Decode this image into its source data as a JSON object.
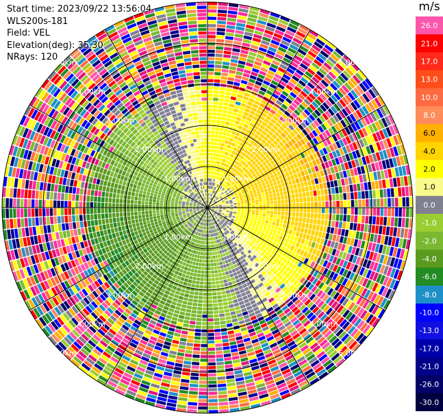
{
  "info": {
    "start_time": "Start time: 2023/09/22 13:56:04",
    "instrument": "WLS200s-181",
    "field": "Field: VEL",
    "elevation": "Elevation(deg): 35.30",
    "nrays": "NRays: 120"
  },
  "rings": {
    "labels": [
      "1.00km",
      "2.00km",
      "3.00km",
      "4.00km",
      "5.00km"
    ]
  },
  "colorbar": {
    "unit": "m/s",
    "levels": [
      {
        "label": "26.0",
        "color": "#ff55aa"
      },
      {
        "label": "21.0",
        "color": "#ff0000"
      },
      {
        "label": "17.0",
        "color": "#ff2a1a"
      },
      {
        "label": "13.0",
        "color": "#ff4d1a"
      },
      {
        "label": "10.0",
        "color": "#ff6a40"
      },
      {
        "label": "8.0",
        "color": "#ff8c5a"
      },
      {
        "label": "6.0",
        "color": "#ffb000"
      },
      {
        "label": "4.0",
        "color": "#ffd400"
      },
      {
        "label": "2.0",
        "color": "#ffff00"
      },
      {
        "label": "1.0",
        "color": "#fafa8c"
      },
      {
        "label": "0.0",
        "color": "#808090"
      },
      {
        "label": "-1.0",
        "color": "#9acd32"
      },
      {
        "label": "-2.0",
        "color": "#7ab830"
      },
      {
        "label": "-4.0",
        "color": "#5a9a1e"
      },
      {
        "label": "-6.0",
        "color": "#228b22"
      },
      {
        "label": "-8.0",
        "color": "#1e90c8"
      },
      {
        "label": "-10.0",
        "color": "#0000ff"
      },
      {
        "label": "-13.0",
        "color": "#1010e0"
      },
      {
        "label": "-17.0",
        "color": "#0000aa"
      },
      {
        "label": "-21.0",
        "color": "#00008b"
      },
      {
        "label": "-26.0",
        "color": "#000066"
      },
      {
        "label": "-30.0",
        "color": "#000040"
      }
    ]
  }
}
